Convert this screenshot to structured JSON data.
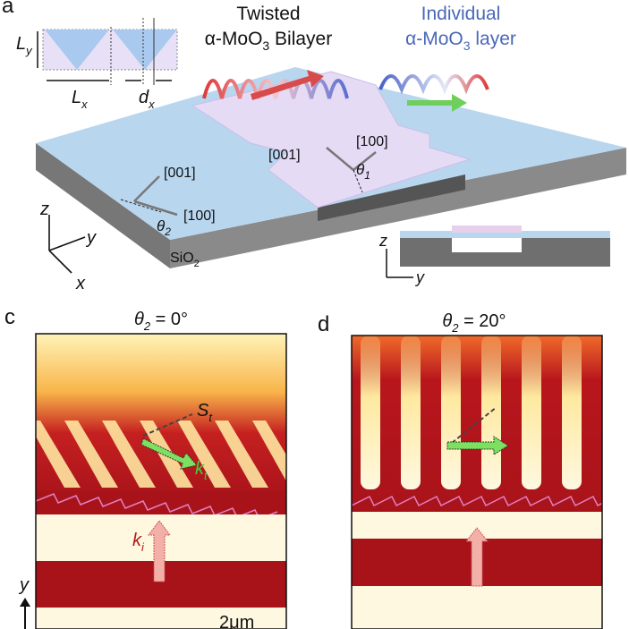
{
  "panel_a": {
    "label": "a",
    "bilayer_title": {
      "line1": "Twisted",
      "line2": {
        "pre": "α-MoO",
        "sub": "3",
        "post": " Bilayer"
      }
    },
    "layer_title": {
      "line1": "Individual",
      "line2": {
        "pre": "α-MoO",
        "sub": "3",
        "post": " layer"
      }
    },
    "inset": {
      "ly": {
        "main": "L",
        "sub": "y"
      },
      "lx": {
        "main": "L",
        "sub": "x"
      },
      "dx": {
        "main": "d",
        "sub": "x"
      }
    },
    "bilayer_axes": {
      "axis1": "[001]",
      "axis2": "[100]",
      "angle": {
        "main": "θ",
        "sub": "1"
      }
    },
    "substrate_axes": {
      "axis1": "[001]",
      "axis2": "[100]",
      "angle": {
        "main": "θ",
        "sub": "2"
      }
    },
    "coords": {
      "z": "z",
      "y": "y",
      "x": "x"
    },
    "substrate": {
      "main": "SiO",
      "sub": "2"
    },
    "cross_section": {
      "z": "z",
      "y": "y"
    }
  },
  "panel_c": {
    "label": "c",
    "title": {
      "main": "θ",
      "sub": "2",
      "post": " = 0°"
    },
    "st": {
      "main": "S",
      "sub": "t"
    },
    "kt": {
      "main": "k",
      "sub": "t"
    },
    "ki": {
      "main": "k",
      "sub": "i"
    },
    "y_axis": "y",
    "scale_bar": "2μm"
  },
  "panel_d": {
    "label": "d",
    "title": {
      "main": "θ",
      "sub": "2",
      "post": " = 20°"
    }
  }
}
